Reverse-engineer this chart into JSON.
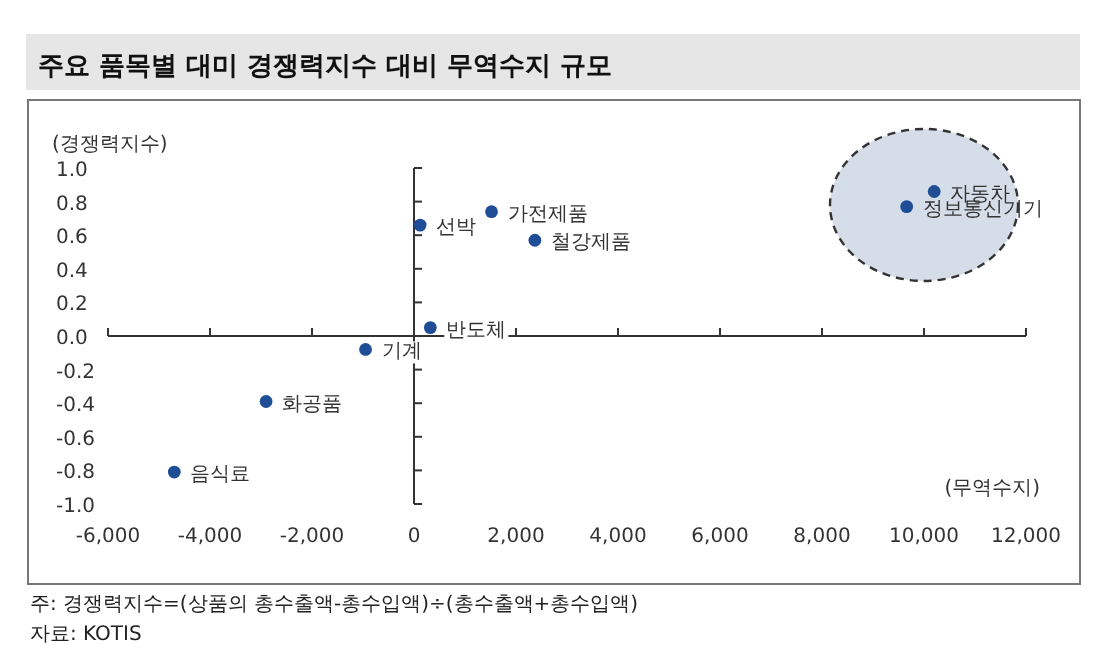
{
  "chart_data": {
    "type": "scatter",
    "title": "주요 품목별 대미 경쟁력지수 대비 무역수지 규모",
    "xlabel": "(무역수지)",
    "ylabel": "(경쟁력지수)",
    "x": [
      -4700,
      -2900,
      -950,
      320,
      120,
      1520,
      2370,
      10200,
      9660
    ],
    "values": [
      -0.81,
      -0.39,
      -0.08,
      0.05,
      0.66,
      0.74,
      0.57,
      0.86,
      0.77
    ],
    "color": "#1f4e96",
    "marker": "circle",
    "xlim": [
      -6000,
      12000
    ],
    "ylim": [
      -1.0,
      1.0
    ],
    "xticks": [
      {
        "value": -6000,
        "label": "-6,000"
      },
      {
        "value": -4000,
        "label": "-4,000"
      },
      {
        "value": -2000,
        "label": "-2,000"
      },
      0,
      {
        "value": 2000,
        "label": "2,000"
      },
      {
        "value": 4000,
        "label": "4,000"
      },
      {
        "value": 6000,
        "label": "6,000"
      },
      {
        "value": 8000,
        "label": "8,000"
      },
      {
        "value": 10000,
        "label": "10,000"
      },
      {
        "value": 12000,
        "label": "12,000"
      }
    ],
    "yticks": [
      {
        "value": -1,
        "label": "-1.0"
      },
      {
        "value": -0.8,
        "label": "-0.8"
      },
      {
        "value": -0.6,
        "label": "-0.6"
      },
      {
        "value": -0.4,
        "label": "-0.4"
      },
      {
        "value": -0.2,
        "label": "-0.2"
      },
      {
        "value": 0,
        "label": "0.0"
      },
      {
        "value": 0.2,
        "label": "0.2"
      },
      {
        "value": 0.4,
        "label": "0.4"
      },
      {
        "value": 0.6,
        "label": "0.6"
      },
      {
        "value": 0.8,
        "label": "0.8"
      },
      {
        "value": 1,
        "label": "1.0"
      }
    ],
    "annotations": [
      {
        "text": "음식료",
        "x": -4700,
        "y": -0.81
      },
      {
        "text": "화공품",
        "x": -2900,
        "y": -0.39
      },
      {
        "text": "기계",
        "x": -950,
        "y": -0.08
      },
      {
        "text": "반도체",
        "x": 320,
        "y": 0.05
      },
      {
        "text": "선박",
        "x": 120,
        "y": 0.66
      },
      {
        "text": "가전제품",
        "x": 1520,
        "y": 0.74
      },
      {
        "text": "철강제품",
        "x": 2370,
        "y": 0.57
      },
      {
        "text": "자동차",
        "x": 10200,
        "y": 0.86
      },
      {
        "text": "정보통신기기",
        "x": 9660,
        "y": 0.77
      },
      "주: 경쟁력지수=(상품의 총수출액-총수입액)÷(총수출액+총수입액)",
      "자료: KOTIS"
    ]
  }
}
